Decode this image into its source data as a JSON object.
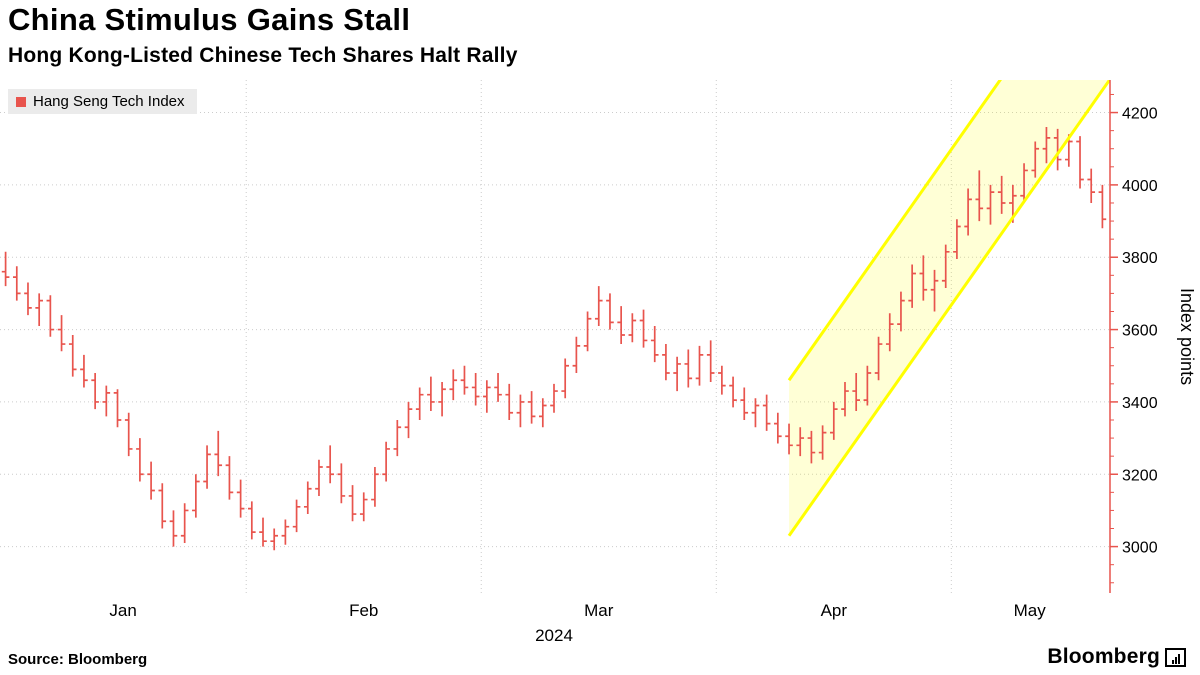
{
  "header": {
    "title": "China Stimulus Gains Stall",
    "subtitle": "Hong Kong-Listed Chinese Tech Shares Halt Rally"
  },
  "legend": {
    "label": "Hang Seng Tech Index",
    "marker_color": "#e8544d"
  },
  "footer": {
    "source": "Source: Bloomberg",
    "brand": "Bloomberg"
  },
  "chart_data": {
    "type": "bar",
    "subtype": "ohlc",
    "title": "China Stimulus Gains Stall",
    "series_name": "Hang Seng Tech Index",
    "ylabel": "Index points",
    "x_axis_year": "2024",
    "months": [
      "Jan",
      "Feb",
      "Mar",
      "Apr",
      "May"
    ],
    "month_start_indices": [
      0,
      22,
      43,
      64,
      85
    ],
    "y_ticks": [
      3000,
      3200,
      3400,
      3600,
      3800,
      4000,
      4200
    ],
    "y_range": [
      2880,
      4290
    ],
    "grid": true,
    "legend_position": "top-left",
    "bar_color": "#e8544d",
    "bars": [
      [
        3760,
        3815,
        3720,
        3745
      ],
      [
        3745,
        3775,
        3680,
        3700
      ],
      [
        3700,
        3730,
        3640,
        3660
      ],
      [
        3660,
        3700,
        3610,
        3680
      ],
      [
        3680,
        3695,
        3580,
        3600
      ],
      [
        3600,
        3640,
        3540,
        3560
      ],
      [
        3560,
        3585,
        3470,
        3490
      ],
      [
        3490,
        3530,
        3440,
        3460
      ],
      [
        3460,
        3480,
        3380,
        3400
      ],
      [
        3400,
        3445,
        3360,
        3425
      ],
      [
        3425,
        3435,
        3330,
        3350
      ],
      [
        3350,
        3370,
        3250,
        3270
      ],
      [
        3270,
        3300,
        3180,
        3200
      ],
      [
        3200,
        3235,
        3130,
        3155
      ],
      [
        3155,
        3175,
        3050,
        3070
      ],
      [
        3070,
        3100,
        3000,
        3030
      ],
      [
        3030,
        3120,
        3010,
        3100
      ],
      [
        3100,
        3200,
        3080,
        3180
      ],
      [
        3180,
        3280,
        3160,
        3255
      ],
      [
        3255,
        3320,
        3195,
        3225
      ],
      [
        3225,
        3250,
        3130,
        3150
      ],
      [
        3150,
        3185,
        3080,
        3105
      ],
      [
        3105,
        3125,
        3020,
        3040
      ],
      [
        3040,
        3080,
        3000,
        3015
      ],
      [
        3015,
        3050,
        2990,
        3030
      ],
      [
        3030,
        3075,
        3005,
        3055
      ],
      [
        3055,
        3130,
        3040,
        3110
      ],
      [
        3110,
        3180,
        3090,
        3160
      ],
      [
        3160,
        3240,
        3140,
        3220
      ],
      [
        3220,
        3280,
        3175,
        3200
      ],
      [
        3200,
        3230,
        3120,
        3140
      ],
      [
        3140,
        3170,
        3070,
        3090
      ],
      [
        3090,
        3150,
        3070,
        3130
      ],
      [
        3130,
        3220,
        3110,
        3200
      ],
      [
        3200,
        3290,
        3180,
        3270
      ],
      [
        3270,
        3350,
        3250,
        3330
      ],
      [
        3330,
        3400,
        3300,
        3380
      ],
      [
        3380,
        3440,
        3350,
        3420
      ],
      [
        3420,
        3470,
        3375,
        3400
      ],
      [
        3400,
        3455,
        3360,
        3435
      ],
      [
        3435,
        3490,
        3405,
        3460
      ],
      [
        3460,
        3500,
        3420,
        3440
      ],
      [
        3440,
        3480,
        3390,
        3415
      ],
      [
        3415,
        3460,
        3370,
        3440
      ],
      [
        3440,
        3480,
        3400,
        3420
      ],
      [
        3420,
        3450,
        3350,
        3370
      ],
      [
        3370,
        3420,
        3330,
        3400
      ],
      [
        3400,
        3430,
        3340,
        3360
      ],
      [
        3360,
        3410,
        3330,
        3390
      ],
      [
        3390,
        3450,
        3370,
        3430
      ],
      [
        3430,
        3520,
        3410,
        3500
      ],
      [
        3500,
        3580,
        3480,
        3555
      ],
      [
        3555,
        3650,
        3540,
        3630
      ],
      [
        3630,
        3720,
        3610,
        3680
      ],
      [
        3680,
        3700,
        3600,
        3620
      ],
      [
        3620,
        3665,
        3560,
        3585
      ],
      [
        3585,
        3645,
        3565,
        3625
      ],
      [
        3625,
        3655,
        3550,
        3570
      ],
      [
        3570,
        3610,
        3510,
        3530
      ],
      [
        3530,
        3560,
        3460,
        3480
      ],
      [
        3480,
        3525,
        3430,
        3505
      ],
      [
        3505,
        3545,
        3440,
        3465
      ],
      [
        3465,
        3555,
        3445,
        3530
      ],
      [
        3530,
        3570,
        3455,
        3480
      ],
      [
        3480,
        3500,
        3420,
        3445
      ],
      [
        3445,
        3470,
        3385,
        3405
      ],
      [
        3405,
        3440,
        3350,
        3370
      ],
      [
        3370,
        3410,
        3330,
        3390
      ],
      [
        3390,
        3420,
        3320,
        3340
      ],
      [
        3340,
        3370,
        3285,
        3305
      ],
      [
        3305,
        3340,
        3255,
        3280
      ],
      [
        3280,
        3330,
        3250,
        3300
      ],
      [
        3300,
        3320,
        3230,
        3260
      ],
      [
        3260,
        3335,
        3240,
        3315
      ],
      [
        3315,
        3400,
        3295,
        3380
      ],
      [
        3380,
        3455,
        3360,
        3430
      ],
      [
        3430,
        3480,
        3375,
        3405
      ],
      [
        3405,
        3500,
        3390,
        3480
      ],
      [
        3480,
        3580,
        3460,
        3560
      ],
      [
        3560,
        3645,
        3540,
        3615
      ],
      [
        3615,
        3705,
        3595,
        3680
      ],
      [
        3680,
        3780,
        3660,
        3755
      ],
      [
        3755,
        3805,
        3680,
        3710
      ],
      [
        3710,
        3765,
        3650,
        3735
      ],
      [
        3735,
        3835,
        3715,
        3815
      ],
      [
        3815,
        3905,
        3795,
        3885
      ],
      [
        3885,
        3990,
        3860,
        3960
      ],
      [
        3960,
        4040,
        3900,
        3935
      ],
      [
        3935,
        4000,
        3890,
        3980
      ],
      [
        3980,
        4025,
        3920,
        3950
      ],
      [
        3950,
        4000,
        3895,
        3970
      ],
      [
        3970,
        4060,
        3950,
        4040
      ],
      [
        4040,
        4120,
        4020,
        4100
      ],
      [
        4100,
        4160,
        4060,
        4130
      ],
      [
        4130,
        4155,
        4040,
        4070
      ],
      [
        4070,
        4140,
        4050,
        4120
      ],
      [
        4120,
        4135,
        3990,
        4015
      ],
      [
        4015,
        4045,
        3950,
        3980
      ],
      [
        3980,
        4000,
        3880,
        3905
      ]
    ],
    "channel": {
      "start_index": 70,
      "lower_start": 3030,
      "upper_start": 3460,
      "slope_per_bar": 44,
      "line_color": "#ffff00",
      "fill_color": "rgba(255,255,0,0.16)"
    }
  }
}
